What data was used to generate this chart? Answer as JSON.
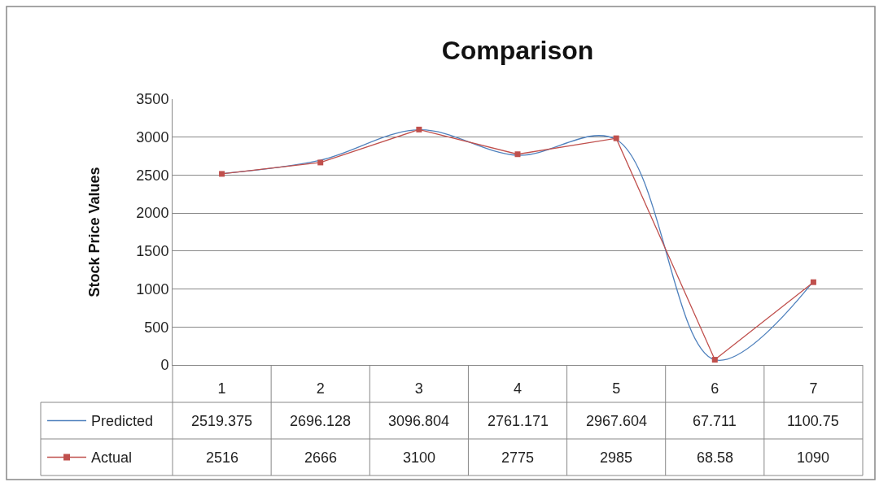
{
  "chart_data": {
    "type": "line",
    "title": "Comparison",
    "ylabel": "Stock Price Values",
    "categories": [
      "1",
      "2",
      "3",
      "4",
      "5",
      "6",
      "7"
    ],
    "series": [
      {
        "name": "Predicted",
        "color": "#4f81bd",
        "marker": "none",
        "values": [
          2519.375,
          2696.128,
          3096.804,
          2761.171,
          2967.604,
          67.711,
          1100.75
        ]
      },
      {
        "name": "Actual",
        "color": "#c0504d",
        "marker": "square",
        "values": [
          2516,
          2666,
          3100,
          2775,
          2985,
          68.58,
          1090
        ]
      }
    ],
    "ylim": [
      0,
      3500
    ],
    "yticks": [
      0,
      500,
      1000,
      1500,
      2000,
      2500,
      3000,
      3500
    ],
    "grid": "y",
    "legend": "bottom left",
    "data_labels": true
  }
}
